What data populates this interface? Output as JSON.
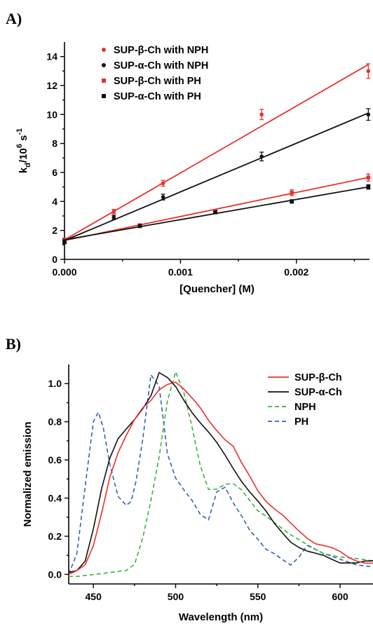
{
  "panels": {
    "a": {
      "label": "A)"
    },
    "b": {
      "label": "B)"
    }
  },
  "chart_data": [
    {
      "type": "scatter",
      "panel": "A)",
      "xlabel": "[Quencher] (M)",
      "ylabel": "k_d/10^6 s^-1",
      "ylabel_parts": {
        "base": "k",
        "sub": "d",
        "mid": "/10",
        "sup1": "6",
        "unit": " s",
        "sup2": "-1"
      },
      "xlim": [
        0,
        0.00263
      ],
      "ylim": [
        0,
        15
      ],
      "x_ticks": [
        0,
        0.001,
        0.002
      ],
      "x_tick_labels": [
        "0.000",
        "0.001",
        "0.002"
      ],
      "y_ticks": [
        0,
        2,
        4,
        6,
        8,
        10,
        12,
        14
      ],
      "y_tick_labels": [
        "0",
        "2",
        "4",
        "6",
        "8",
        "10",
        "12",
        "14"
      ],
      "legend_position": "top-left",
      "grid": false,
      "series": [
        {
          "name": "SUP-β-Ch with NPH",
          "color": "#e8322c",
          "marker": "circle",
          "x": [
            0,
            0.000425,
            0.00085,
            0.0017,
            0.00262
          ],
          "y": [
            1.35,
            3.3,
            5.25,
            10.0,
            13.0
          ],
          "err": [
            0.12,
            0.15,
            0.2,
            0.35,
            0.5
          ],
          "fit": [
            [
              0,
              1.35
            ],
            [
              0.00262,
              13.45
            ]
          ]
        },
        {
          "name": "SUP-α-Ch with NPH",
          "color": "#111111",
          "marker": "circle",
          "x": [
            0,
            0.000425,
            0.00085,
            0.0017,
            0.00262
          ],
          "y": [
            1.2,
            2.9,
            4.3,
            7.1,
            10.0
          ],
          "err": [
            0.12,
            0.15,
            0.2,
            0.3,
            0.4
          ],
          "fit": [
            [
              0,
              1.3
            ],
            [
              0.00262,
              10.1
            ]
          ]
        },
        {
          "name": "SUP-β-Ch with PH",
          "color": "#e8322c",
          "marker": "square",
          "x": [
            0,
            0.00065,
            0.0013,
            0.00196,
            0.00262
          ],
          "y": [
            1.35,
            2.35,
            3.3,
            4.6,
            5.65
          ],
          "err": [
            0.12,
            0.1,
            0.12,
            0.2,
            0.25
          ],
          "fit": [
            [
              0,
              1.3
            ],
            [
              0.00262,
              5.65
            ]
          ]
        },
        {
          "name": "SUP-α-Ch with PH",
          "color": "#111111",
          "marker": "square",
          "x": [
            0,
            0.00065,
            0.0013,
            0.00196,
            0.00262
          ],
          "y": [
            1.25,
            2.3,
            3.25,
            4.0,
            5.0
          ],
          "err": [
            0.1,
            0.1,
            0.1,
            0.12,
            0.15
          ],
          "fit": [
            [
              0,
              1.35
            ],
            [
              0.00262,
              5.0
            ]
          ]
        }
      ]
    },
    {
      "type": "line",
      "panel": "B)",
      "xlabel": "Wavelength (nm)",
      "ylabel": "Normalized emission",
      "xlim": [
        435,
        620
      ],
      "ylim": [
        -0.05,
        1.1
      ],
      "x_ticks": [
        450,
        500,
        550,
        600
      ],
      "x_tick_labels": [
        "450",
        "500",
        "550",
        "600"
      ],
      "y_ticks": [
        0,
        0.2,
        0.4,
        0.6,
        0.8,
        1.0
      ],
      "y_tick_labels": [
        "0.0",
        "0.2",
        "0.4",
        "0.6",
        "0.8",
        "1.0"
      ],
      "legend_position": "top-right",
      "grid": false,
      "series": [
        {
          "name": "SUP-β-Ch",
          "color": "#e8322c",
          "dash": "none",
          "x": [
            435,
            440,
            445,
            450,
            455,
            460,
            465,
            470,
            475,
            480,
            485,
            490,
            495,
            500,
            505,
            510,
            515,
            520,
            525,
            530,
            535,
            540,
            545,
            550,
            555,
            560,
            565,
            570,
            575,
            580,
            585,
            590,
            595,
            600,
            605,
            610,
            615,
            620
          ],
          "y": [
            0.0,
            0.01,
            0.04,
            0.15,
            0.33,
            0.52,
            0.64,
            0.72,
            0.8,
            0.87,
            0.92,
            0.98,
            1.0,
            1.0,
            0.96,
            0.92,
            0.88,
            0.82,
            0.76,
            0.7,
            0.66,
            0.58,
            0.52,
            0.45,
            0.39,
            0.34,
            0.3,
            0.26,
            0.23,
            0.2,
            0.17,
            0.15,
            0.13,
            0.11,
            0.09,
            0.08,
            0.07,
            0.06
          ]
        },
        {
          "name": "SUP-α-Ch",
          "color": "#111111",
          "dash": "none",
          "x": [
            435,
            440,
            445,
            450,
            455,
            460,
            465,
            470,
            475,
            480,
            485,
            490,
            495,
            500,
            505,
            510,
            515,
            520,
            525,
            530,
            535,
            540,
            545,
            550,
            555,
            560,
            565,
            570,
            575,
            580,
            585,
            590,
            595,
            600,
            605,
            610,
            615,
            620
          ],
          "y": [
            0.0,
            0.02,
            0.08,
            0.25,
            0.45,
            0.6,
            0.7,
            0.76,
            0.82,
            0.88,
            0.94,
            1.05,
            1.02,
            0.98,
            0.92,
            0.86,
            0.8,
            0.74,
            0.68,
            0.62,
            0.56,
            0.5,
            0.44,
            0.38,
            0.32,
            0.26,
            0.22,
            0.18,
            0.15,
            0.12,
            0.1,
            0.09,
            0.08,
            0.07,
            0.07,
            0.06,
            0.06,
            0.06
          ]
        },
        {
          "name": "NPH",
          "color": "#3cb043",
          "dash": "6,4",
          "x": [
            435,
            440,
            450,
            460,
            470,
            475,
            480,
            485,
            490,
            495,
            500,
            505,
            510,
            515,
            520,
            525,
            530,
            535,
            540,
            545,
            550,
            555,
            560,
            570,
            580,
            590,
            600,
            610,
            620
          ],
          "y": [
            0.0,
            0.0,
            0.0,
            0.0,
            0.01,
            0.05,
            0.2,
            0.4,
            0.62,
            0.9,
            1.05,
            0.95,
            0.78,
            0.58,
            0.45,
            0.44,
            0.46,
            0.47,
            0.45,
            0.4,
            0.34,
            0.3,
            0.26,
            0.2,
            0.16,
            0.12,
            0.1,
            0.08,
            0.06
          ]
        },
        {
          "name": "PH",
          "color": "#3a5fb0",
          "dash": "6,4",
          "x": [
            435,
            440,
            445,
            450,
            453,
            456,
            460,
            465,
            470,
            473,
            476,
            480,
            485,
            490,
            495,
            500,
            505,
            510,
            515,
            520,
            525,
            530,
            535,
            540,
            545,
            550,
            555,
            560,
            565,
            570,
            575,
            580,
            585,
            590,
            600,
            610,
            620
          ],
          "y": [
            0.0,
            0.1,
            0.45,
            0.8,
            0.86,
            0.78,
            0.58,
            0.4,
            0.35,
            0.38,
            0.5,
            0.72,
            1.05,
            0.98,
            0.62,
            0.5,
            0.45,
            0.4,
            0.32,
            0.28,
            0.42,
            0.45,
            0.38,
            0.32,
            0.24,
            0.18,
            0.12,
            0.1,
            0.08,
            0.06,
            0.1,
            0.15,
            0.12,
            0.1,
            0.08,
            0.06,
            0.05
          ]
        }
      ]
    }
  ]
}
